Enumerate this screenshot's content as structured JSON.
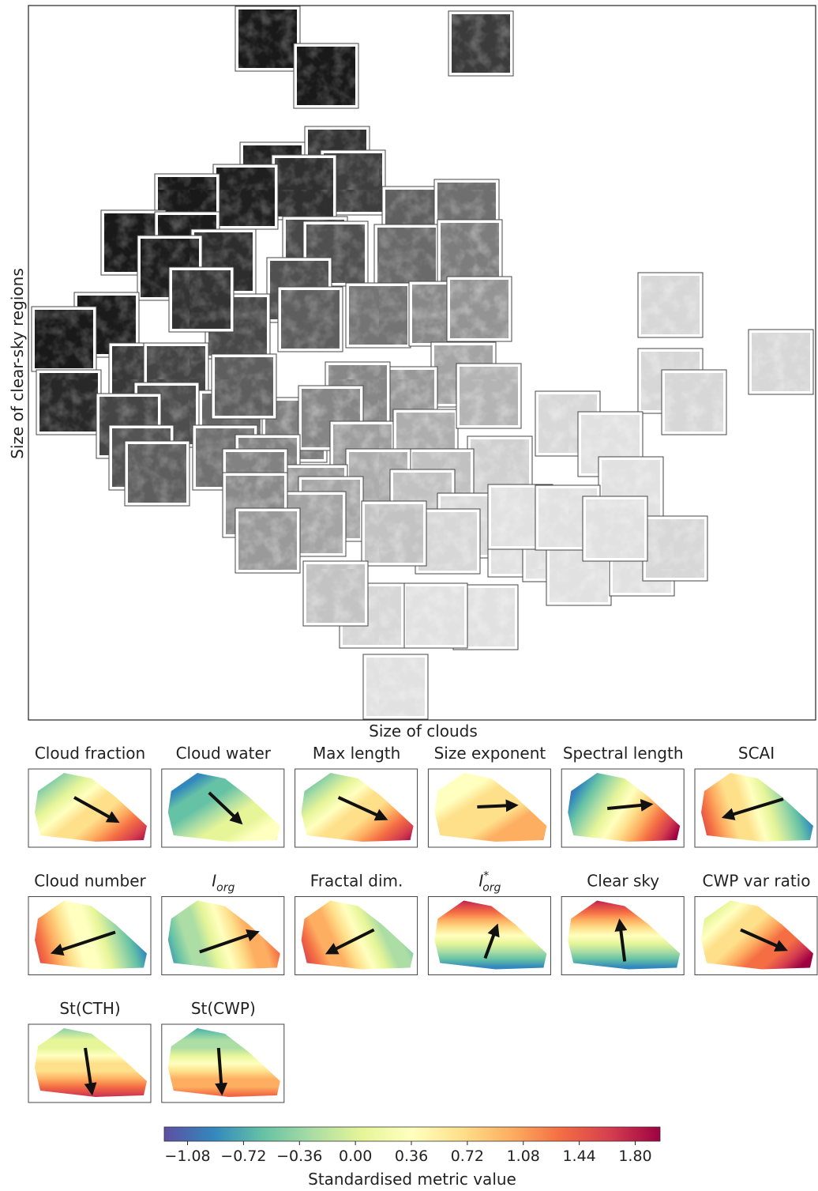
{
  "main_panel": {
    "xlabel": "Size of clouds",
    "ylabel": "Size of clear-sky regions"
  },
  "panels": [
    {
      "title": "Cloud fraction"
    },
    {
      "title": "Cloud water"
    },
    {
      "title": "Max length"
    },
    {
      "title": "Size exponent"
    },
    {
      "title": "Spectral length"
    },
    {
      "title": "SCAI"
    },
    {
      "title": "Cloud number"
    },
    {
      "title": {
        "base": "I",
        "sub": "org"
      }
    },
    {
      "title": "Fractal dim."
    },
    {
      "title": {
        "base": "I",
        "sup": "*",
        "sub": "org"
      }
    },
    {
      "title": "Clear sky"
    },
    {
      "title": "CWP var ratio"
    },
    {
      "title": "St(CTH)"
    },
    {
      "title": "St(CWP)"
    }
  ],
  "colorbar": {
    "label": "Standardised metric value",
    "colormap": "Spectral_r",
    "lim": [
      -1.23,
      1.96
    ],
    "ticks": [
      {
        "value": -1.08,
        "label": "−1.08"
      },
      {
        "value": -0.72,
        "label": "−0.72"
      },
      {
        "value": -0.36,
        "label": "−0.36"
      },
      {
        "value": 0,
        "label": "0.00"
      },
      0.36,
      0.72,
      1.08,
      1.44,
      {
        "value": 1.8,
        "label": "1.80"
      }
    ]
  }
}
